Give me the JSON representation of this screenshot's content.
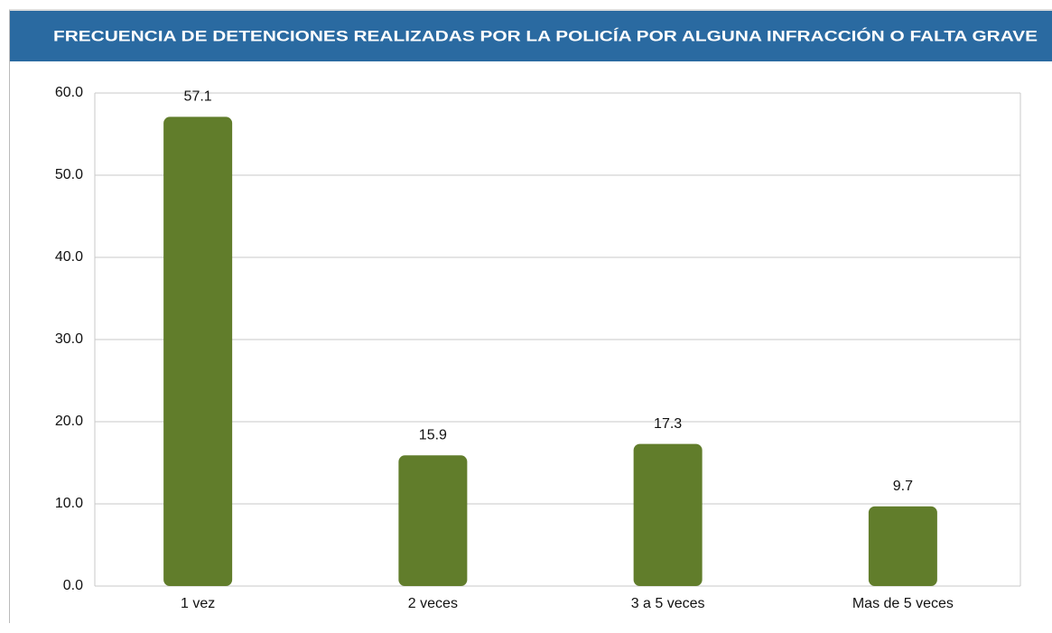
{
  "chart_data": {
    "type": "bar",
    "title": "FRECUENCIA DE DETENCIONES REALIZADAS POR LA POLICÍA POR ALGUNA INFRACCIÓN O FALTA GRAVE",
    "categories": [
      "1 vez",
      "2 veces",
      "3 a 5 veces",
      "Mas de 5 veces"
    ],
    "values": [
      57.1,
      15.9,
      17.3,
      9.7
    ],
    "color": "#617d2b",
    "ylim": [
      0,
      60
    ],
    "yticks": [
      {
        "value": 0,
        "label": "0.0"
      },
      {
        "value": 10,
        "label": "10.0"
      },
      {
        "value": 20,
        "label": "20.0"
      },
      {
        "value": 30,
        "label": "30.0"
      },
      {
        "value": 40,
        "label": "40.0"
      },
      {
        "value": 50,
        "label": "50.0"
      },
      {
        "value": 60,
        "label": "60.0"
      }
    ],
    "grid": true
  }
}
